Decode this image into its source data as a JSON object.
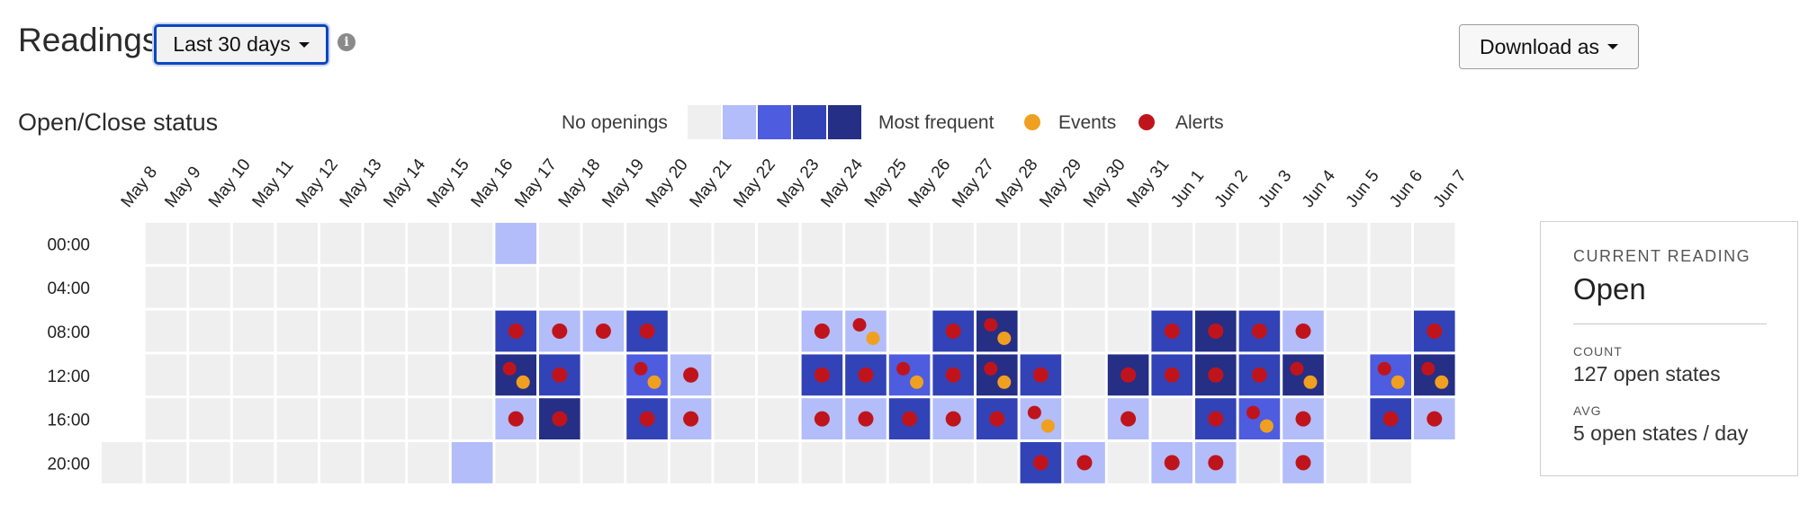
{
  "header": {
    "title": "Readings",
    "range_label": "Last 30 days",
    "info_icon": "info-icon",
    "download_label": "Download as"
  },
  "legend": {
    "low_label": "No openings",
    "high_label": "Most frequent",
    "events_label": "Events",
    "alerts_label": "Alerts"
  },
  "colors": {
    "levels": [
      "#efefef",
      "#b3bdf9",
      "#4e5ce0",
      "#3243b7",
      "#252f86"
    ],
    "event": "#f0a020",
    "alert": "#c0141c",
    "focus_border": "#0d47c0"
  },
  "panel": {
    "current_label": "CURRENT READING",
    "current_value": "Open",
    "count_label": "COUNT",
    "count_value": "127 open states",
    "avg_label": "AVG",
    "avg_value": "5 open states / day"
  },
  "chart_data": {
    "type": "heatmap",
    "title": "Open/Close status",
    "x": [
      "May 8",
      "May 9",
      "May 10",
      "May 11",
      "May 12",
      "May 13",
      "May 14",
      "May 15",
      "May 16",
      "May 17",
      "May 18",
      "May 19",
      "May 20",
      "May 21",
      "May 22",
      "May 23",
      "May 24",
      "May 25",
      "May 26",
      "May 27",
      "May 28",
      "May 29",
      "May 30",
      "May 31",
      "Jun 1",
      "Jun 2",
      "Jun 3",
      "Jun 4",
      "Jun 5",
      "Jun 6",
      "Jun 7"
    ],
    "y": [
      "00:00",
      "04:00",
      "08:00",
      "12:00",
      "16:00",
      "20:00"
    ],
    "scale": [
      "No openings",
      "Most frequent"
    ],
    "levels": [
      [
        null,
        0,
        0,
        0,
        0,
        0,
        0,
        0,
        0,
        1,
        0,
        0,
        0,
        0,
        0,
        0,
        0,
        0,
        0,
        0,
        0,
        0,
        0,
        0,
        0,
        0,
        0,
        0,
        0,
        0,
        0
      ],
      [
        null,
        0,
        0,
        0,
        0,
        0,
        0,
        0,
        0,
        0,
        0,
        0,
        0,
        0,
        0,
        0,
        0,
        0,
        0,
        0,
        0,
        0,
        0,
        0,
        0,
        0,
        0,
        0,
        0,
        0,
        0
      ],
      [
        null,
        0,
        0,
        0,
        0,
        0,
        0,
        0,
        0,
        3,
        1,
        1,
        3,
        0,
        0,
        0,
        1,
        1,
        0,
        3,
        4,
        0,
        0,
        0,
        3,
        4,
        3,
        1,
        0,
        0,
        3
      ],
      [
        null,
        0,
        0,
        0,
        0,
        0,
        0,
        0,
        0,
        4,
        3,
        0,
        2,
        1,
        0,
        0,
        3,
        3,
        2,
        3,
        4,
        3,
        0,
        4,
        3,
        4,
        3,
        4,
        0,
        2,
        4
      ],
      [
        null,
        0,
        0,
        0,
        0,
        0,
        0,
        0,
        0,
        1,
        4,
        0,
        3,
        1,
        0,
        0,
        1,
        1,
        3,
        1,
        3,
        1,
        0,
        1,
        0,
        3,
        2,
        1,
        0,
        3,
        1
      ],
      [
        0,
        0,
        0,
        0,
        0,
        0,
        0,
        0,
        1,
        0,
        0,
        0,
        0,
        0,
        0,
        0,
        0,
        0,
        0,
        0,
        0,
        3,
        1,
        0,
        1,
        1,
        0,
        1,
        0,
        0,
        null
      ]
    ],
    "markers": [
      [
        null,
        "",
        "",
        "",
        "",
        "",
        "",
        "",
        "",
        "",
        "",
        "",
        "",
        "",
        "",
        "",
        "",
        "",
        "",
        "",
        "",
        "",
        "",
        "",
        "",
        "",
        "",
        "",
        "",
        "",
        ""
      ],
      [
        null,
        "",
        "",
        "",
        "",
        "",
        "",
        "",
        "",
        "",
        "",
        "",
        "",
        "",
        "",
        "",
        "",
        "",
        "",
        "",
        "",
        "",
        "",
        "",
        "",
        "",
        "",
        "",
        "",
        "",
        ""
      ],
      [
        null,
        "",
        "",
        "",
        "",
        "",
        "",
        "",
        "",
        "A",
        "A",
        "A",
        "A",
        "",
        "",
        "",
        "A",
        "AE",
        "",
        "A",
        "AE",
        "",
        "",
        "",
        "A",
        "A",
        "A",
        "A",
        "",
        "",
        "A"
      ],
      [
        null,
        "",
        "",
        "",
        "",
        "",
        "",
        "",
        "",
        "AE",
        "A",
        "",
        "AE",
        "A",
        "",
        "",
        "A",
        "A",
        "AE",
        "A",
        "AE",
        "A",
        "",
        "A",
        "A",
        "A",
        "A",
        "AE",
        "",
        "AE",
        "AE"
      ],
      [
        null,
        "",
        "",
        "",
        "",
        "",
        "",
        "",
        "",
        "A",
        "A",
        "",
        "A",
        "A",
        "",
        "",
        "A",
        "A",
        "A",
        "A",
        "A",
        "AE",
        "",
        "A",
        "",
        "A",
        "AE",
        "A",
        "",
        "A",
        "A"
      ],
      [
        "",
        "",
        "",
        "",
        "",
        "",
        "",
        "",
        "",
        "",
        "",
        "",
        "",
        "",
        "",
        "",
        "",
        "",
        "",
        "",
        "",
        "A",
        "A",
        "",
        "A",
        "A",
        "",
        "A",
        "",
        "",
        null
      ]
    ],
    "marker_legend": {
      "A": "Alerts",
      "E": "Events"
    }
  }
}
